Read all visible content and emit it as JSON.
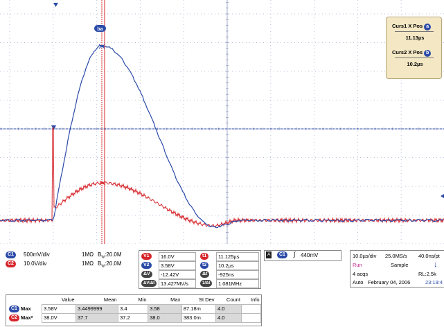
{
  "colors": {
    "ch1": "#2b4aa8",
    "ch2": "#d6262b",
    "grid": "#9aa5c8",
    "cursor": "#d6262b",
    "cursor_box_bg": "#f3e7c4"
  },
  "markers": {
    "cursor_ab_label": "ba",
    "cursor_a": "a",
    "cursor_b": "b"
  },
  "cursor_box": {
    "curs1_label": "Curs1 X Pos",
    "curs1_value": "11.13µs",
    "curs2_label": "Curs2 X Pos",
    "curs2_value": "10.2µs"
  },
  "channels": [
    {
      "badge": "C1",
      "scale": "500mV/div",
      "coupling": "1MΩ",
      "bw_symbol": "B",
      "bw_sub": "W",
      "bw_value": ":20.0M"
    },
    {
      "badge": "C2",
      "scale": "10.0V/div",
      "coupling": "1MΩ",
      "bw_symbol": "B",
      "bw_sub": "W",
      "bw_value": ":20.0M"
    }
  ],
  "cursors": {
    "v1_badge": "V1",
    "v1": "16.0V",
    "v2_badge": "V2",
    "v2": "3.58V",
    "dv_badge": "ΔV",
    "dv": "-12.42V",
    "dvdt_badge": "ΔV/Δt",
    "dvdt": "13.427MV/s",
    "t1_badge": "t1",
    "t1": "11.125µs",
    "t2_badge": "t2",
    "t2": "10.2µs",
    "dt_badge": "Δt",
    "dt": "-925ns",
    "inv_dt_badge": "1/Δt",
    "inv_dt": "1.081MHz"
  },
  "trigger": {
    "mode_badge": "A",
    "source_badge": "C1",
    "slope": "∫",
    "level": "440mV"
  },
  "timebase": {
    "horizontal": "10.0µs/div",
    "sample_rate": "25.0MS/s",
    "resolution": "40.0ns/pt",
    "state": "Run",
    "mode": "Sample",
    "acqs": "4 acqs",
    "record_length": "RL:2.5k",
    "trigger_mode": "Auto",
    "date": "February 04, 2006",
    "time": "23:19:4"
  },
  "measurements": {
    "headers": [
      "Value",
      "Mean",
      "Min",
      "Max",
      "St Dev",
      "Count",
      "Info"
    ],
    "rows": [
      {
        "badge": "C1",
        "name": "Max",
        "value": "3.58V",
        "mean": "3.4499999",
        "min": "3.4",
        "max": "3.58",
        "stdev": "87.18m",
        "count": "4.0",
        "info": ""
      },
      {
        "badge": "C2",
        "name": "Max*",
        "value": "38.0V",
        "mean": "37.7",
        "min": "37.2",
        "max": "38.0",
        "stdev": "383.0m",
        "count": "4.0",
        "info": ""
      }
    ]
  }
}
